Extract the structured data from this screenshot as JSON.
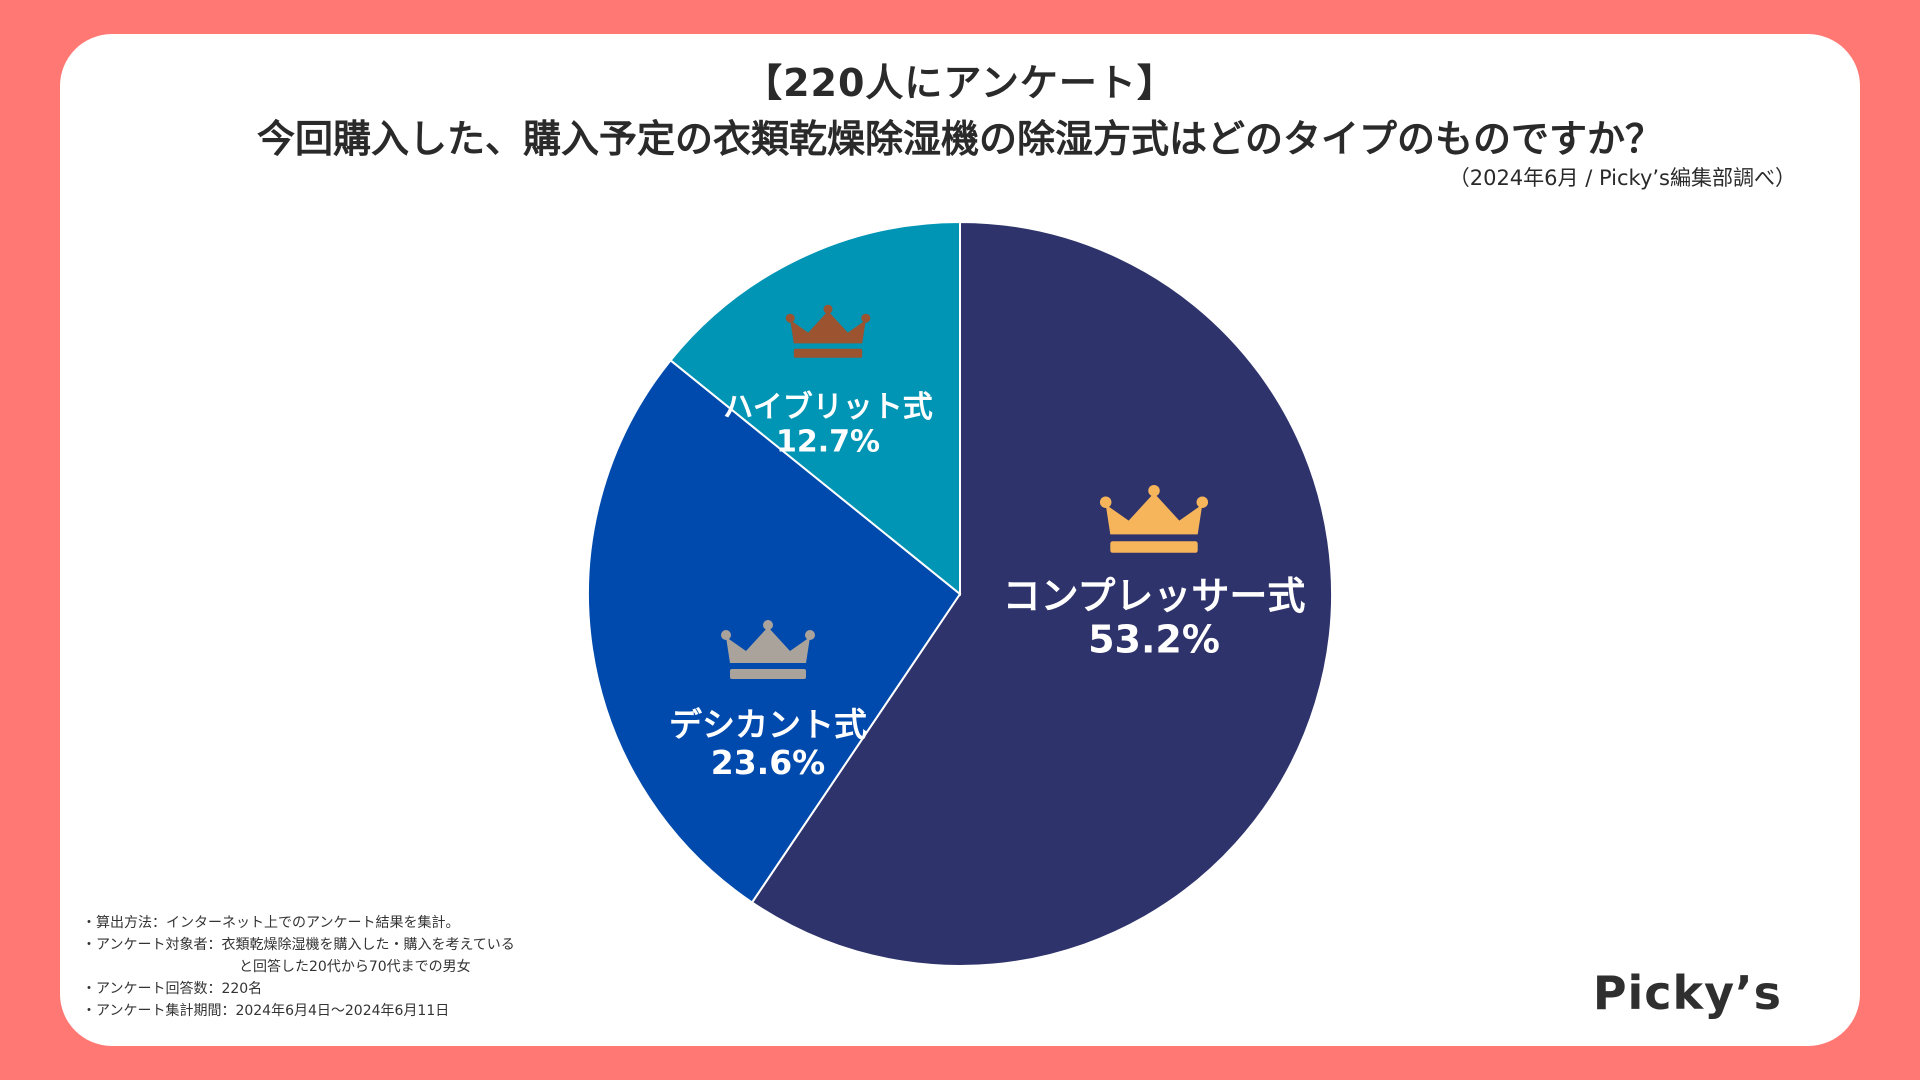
{
  "header": {
    "title_line1": "【220人にアンケート】",
    "title_line2": "今回購入した、購入予定の衣類乾燥除湿機の除湿方式はどのタイプのものですか？",
    "source": "（2024年6月 / Picky’s編集部調べ）"
  },
  "chart_data": {
    "type": "pie",
    "title": "今回購入した、購入予定の衣類乾燥除湿機の除湿方式はどのタイプのものですか？",
    "slices": [
      {
        "label": "コンプレッサー式",
        "value": 53.2,
        "display": "53.2%",
        "color": "#2e336b",
        "crown_color": "#f7b55b",
        "rank": 1
      },
      {
        "label": "デシカント式",
        "value": 23.6,
        "display": "23.6%",
        "color": "#004aad",
        "crown_color": "#aaa39c",
        "rank": 2
      },
      {
        "label": "ハイブリット式",
        "value": 12.7,
        "display": "12.7%",
        "color": "#0095b4",
        "crown_color": "#9b5330",
        "rank": 3
      }
    ]
  },
  "notes": {
    "line1": "・算出方法：インターネット上でのアンケート結果を集計。",
    "line2": "・アンケート対象者：衣類乾燥除湿機を購入した・購入を考えている",
    "line3": "と回答した20代から70代までの男女",
    "line4": "・アンケート回答数：220名",
    "line5": "・アンケート集計期間：2024年6月4日〜2024年6月11日"
  },
  "brand": {
    "logo": "Picky’s"
  },
  "colors": {
    "background": "#ff7873",
    "card": "#ffffff",
    "text": "#2a2a2a"
  }
}
